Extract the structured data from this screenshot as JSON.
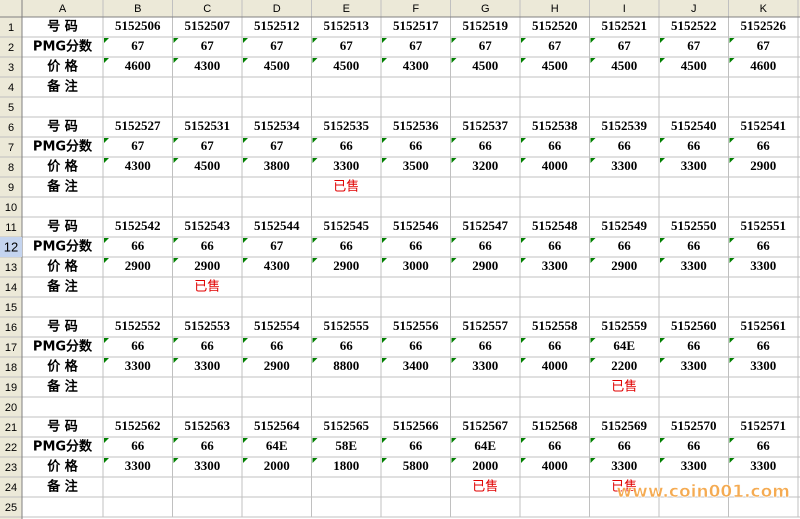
{
  "sheet": {
    "columns": [
      "A",
      "B",
      "C",
      "D",
      "E",
      "F",
      "G",
      "H",
      "I",
      "J",
      "K"
    ],
    "row_numbers": [
      "1",
      "2",
      "3",
      "4",
      "5",
      "6",
      "7",
      "8",
      "9",
      "10",
      "11",
      "12",
      "13",
      "14",
      "15",
      "16",
      "17",
      "18",
      "19",
      "20",
      "21",
      "22",
      "23",
      "24",
      "25"
    ],
    "rows": [
      [
        "号 码",
        "5152506",
        "5152507",
        "5152512",
        "5152513",
        "5152517",
        "5152519",
        "5152520",
        "5152521",
        "5152522",
        "5152526"
      ],
      [
        "PMG分数",
        "67",
        "67",
        "67",
        "67",
        "67",
        "67",
        "67",
        "67",
        "67",
        "67"
      ],
      [
        "价 格",
        "4600",
        "4300",
        "4500",
        "4500",
        "4300",
        "4500",
        "4500",
        "4500",
        "4500",
        "4600"
      ],
      [
        "备 注",
        null,
        null,
        null,
        null,
        null,
        null,
        null,
        null,
        null,
        null
      ],
      null,
      [
        "号 码",
        "5152527",
        "5152531",
        "5152534",
        "5152535",
        "5152536",
        "5152537",
        "5152538",
        "5152539",
        "5152540",
        "5152541"
      ],
      [
        "PMG分数",
        "67",
        "67",
        "67",
        "66",
        "66",
        "66",
        "66",
        "66",
        "66",
        "66"
      ],
      [
        "价 格",
        "4300",
        "4500",
        "3800",
        "3300",
        "3500",
        "3200",
        "4000",
        "3300",
        "3300",
        "2900"
      ],
      [
        "备 注",
        null,
        null,
        null,
        "已售",
        null,
        null,
        null,
        null,
        null,
        null
      ],
      null,
      [
        "号 码",
        "5152542",
        "5152543",
        "5152544",
        "5152545",
        "5152546",
        "5152547",
        "5152548",
        "5152549",
        "5152550",
        "5152551"
      ],
      [
        "PMG分数",
        "66",
        "66",
        "67",
        "66",
        "66",
        "66",
        "66",
        "66",
        "66",
        "66"
      ],
      [
        "价 格",
        "2900",
        "2900",
        "4300",
        "2900",
        "3000",
        "2900",
        "3300",
        "2900",
        "3300",
        "3300"
      ],
      [
        "备 注",
        null,
        "已售",
        null,
        null,
        null,
        null,
        null,
        null,
        null,
        null
      ],
      null,
      [
        "号 码",
        "5152552",
        "5152553",
        "5152554",
        "5152555",
        "5152556",
        "5152557",
        "5152558",
        "5152559",
        "5152560",
        "5152561"
      ],
      [
        "PMG分数",
        "66",
        "66",
        "66",
        "66",
        "66",
        "66",
        "66",
        "64E",
        "66",
        "66"
      ],
      [
        "价 格",
        "3300",
        "3300",
        "2900",
        "8800",
        "3400",
        "3300",
        "4000",
        "2200",
        "3300",
        "3300"
      ],
      [
        "备 注",
        null,
        null,
        null,
        null,
        null,
        null,
        null,
        "已售",
        null,
        null
      ],
      null,
      [
        "号 码",
        "5152562",
        "5152563",
        "5152564",
        "5152565",
        "5152566",
        "5152567",
        "5152568",
        "5152569",
        "5152570",
        "5152571"
      ],
      [
        "PMG分数",
        "66",
        "66",
        "64E",
        "58E",
        "66",
        "64E",
        "66",
        "66",
        "66",
        "66"
      ],
      [
        "价 格",
        "3300",
        "3300",
        "2000",
        "1800",
        "5800",
        "2000",
        "4000",
        "3300",
        "3300",
        "3300"
      ],
      [
        "备 注",
        null,
        null,
        null,
        null,
        null,
        "已售",
        null,
        "已售",
        null,
        null
      ],
      null
    ],
    "watermark": "www.coin001.com"
  }
}
